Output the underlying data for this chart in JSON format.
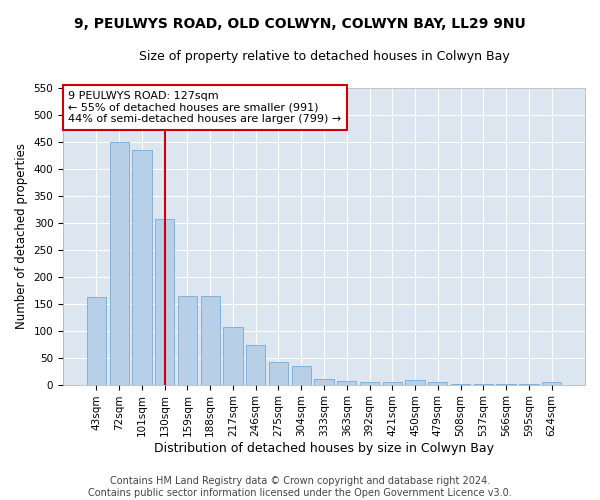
{
  "title1": "9, PEULWYS ROAD, OLD COLWYN, COLWYN BAY, LL29 9NU",
  "title2": "Size of property relative to detached houses in Colwyn Bay",
  "xlabel": "Distribution of detached houses by size in Colwyn Bay",
  "ylabel": "Number of detached properties",
  "categories": [
    "43sqm",
    "72sqm",
    "101sqm",
    "130sqm",
    "159sqm",
    "188sqm",
    "217sqm",
    "246sqm",
    "275sqm",
    "304sqm",
    "333sqm",
    "363sqm",
    "392sqm",
    "421sqm",
    "450sqm",
    "479sqm",
    "508sqm",
    "537sqm",
    "566sqm",
    "595sqm",
    "624sqm"
  ],
  "values": [
    163,
    450,
    435,
    307,
    165,
    165,
    107,
    74,
    42,
    35,
    10,
    6,
    5,
    5,
    8,
    4,
    2,
    2,
    2,
    1,
    4
  ],
  "bar_color": "#b8cfe8",
  "bar_edge_color": "#7aaad0",
  "highlight_bar_index": 3,
  "highlight_line_color": "#cc0000",
  "ylim": [
    0,
    550
  ],
  "yticks": [
    0,
    50,
    100,
    150,
    200,
    250,
    300,
    350,
    400,
    450,
    500,
    550
  ],
  "annotation_text": "9 PEULWYS ROAD: 127sqm\n← 55% of detached houses are smaller (991)\n44% of semi-detached houses are larger (799) →",
  "annotation_box_color": "#ffffff",
  "annotation_box_edge": "#cc0000",
  "footer_text": "Contains HM Land Registry data © Crown copyright and database right 2024.\nContains public sector information licensed under the Open Government Licence v3.0.",
  "plot_bg_color": "#dce6f0",
  "title1_fontsize": 10,
  "title2_fontsize": 9,
  "xlabel_fontsize": 9,
  "ylabel_fontsize": 8.5,
  "tick_fontsize": 7.5,
  "footer_fontsize": 7,
  "annotation_fontsize": 8
}
